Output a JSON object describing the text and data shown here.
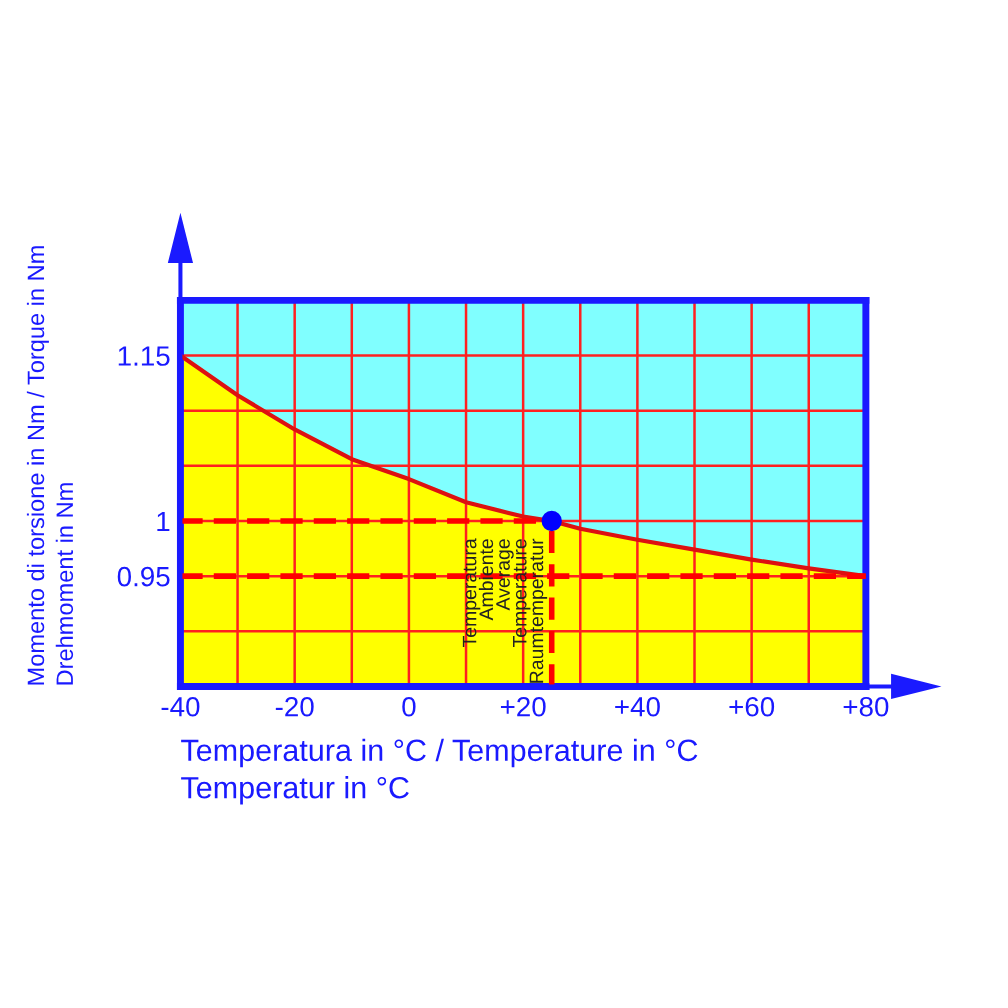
{
  "chart_data": {
    "type": "area",
    "xlabel": "Temperatura in °C / Temperature in °C\nTemperatur in °C",
    "ylabel": "Momento di torsione in Nm / Torque in Nm\nDrehmoment in Nm",
    "x": [
      -40,
      -30,
      -20,
      -10,
      0,
      10,
      20,
      25,
      30,
      40,
      50,
      60,
      70,
      80
    ],
    "series": [
      {
        "color": "#ffff00",
        "values": [
          1.15,
          1.114,
          1.083,
          1.056,
          1.038,
          1.017,
          1.004,
          1.0,
          0.993,
          0.983,
          0.974,
          0.965,
          0.957,
          0.95
        ]
      },
      {
        "type": "scatter",
        "color": "#0000ff",
        "x": [
          25
        ],
        "values": [
          1.0
        ]
      }
    ],
    "xlim": [
      -40,
      80
    ],
    "xticks": [
      -40,
      {
        "value": -30,
        "label": null
      },
      -20,
      {
        "value": -10,
        "label": null
      },
      0,
      {
        "value": 10,
        "label": null
      },
      {
        "value": 20,
        "label": "+20"
      },
      {
        "value": 30,
        "label": null
      },
      {
        "value": 40,
        "label": "+40"
      },
      {
        "value": 50,
        "label": null
      },
      {
        "value": 60,
        "label": "+60"
      },
      {
        "value": 70,
        "label": null
      },
      {
        "value": 80,
        "label": "+80"
      }
    ],
    "ylim": [
      0.85,
      1.2
    ],
    "yticks": [
      {
        "value": 0.9,
        "label": null
      },
      0.95,
      1,
      {
        "value": 1.05,
        "label": null
      },
      {
        "value": 1.1,
        "label": null
      },
      1.15
    ],
    "ref_lines": [
      {
        "axis": "y",
        "value": 1,
        "color": "#ff0000",
        "line_style": "dashed"
      },
      {
        "axis": "y",
        "value": 0.95,
        "color": "#ff0000",
        "line_style": "dashed"
      },
      {
        "axis": "x",
        "value": 25,
        "color": "#ff0000",
        "line_style": "dashed",
        "label": "Temperatura\nAmbiente\nAverage\nTemperature\nRaumtemperatur"
      }
    ],
    "grid": true
  }
}
